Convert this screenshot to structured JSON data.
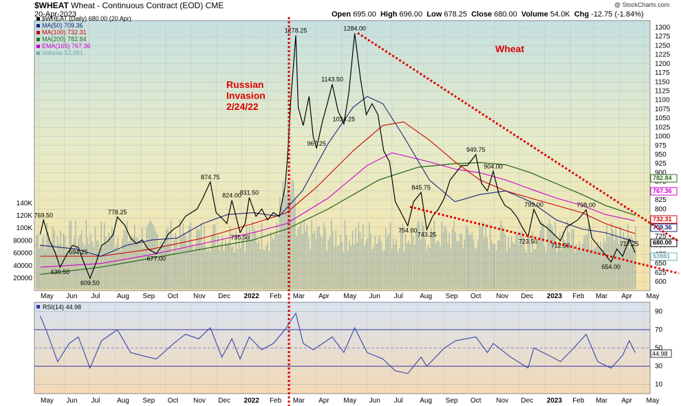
{
  "header": {
    "symbol": "$WHEAT",
    "title": "Wheat - Continuous Contract (EOD)",
    "exchange": "CME",
    "date": "20-Apr-2023",
    "watermark": "@ StockCharts.com",
    "quote": {
      "open_label": "Open",
      "open": "695.00",
      "high_label": "High",
      "high": "696.00",
      "low_label": "Low",
      "low": "678.25",
      "close_label": "Close",
      "close": "680.00",
      "volume_label": "Volume",
      "volume": "54.0K",
      "chg_label": "Chg",
      "chg": "-12.75 (-1.84%)"
    }
  },
  "legend": [
    {
      "text": "$WHEAT (Daily) 680.00 (20 Apr)",
      "color": "#000000"
    },
    {
      "text": "MA(50) 709.36",
      "color": "#1a237e"
    },
    {
      "text": "MA(100) 732.31",
      "color": "#cc0000"
    },
    {
      "text": "MA(200) 782.84",
      "color": "#2e6b1e"
    },
    {
      "text": "EMA(165) 767.36",
      "color": "#cc00cc"
    },
    {
      "text": "Volume 53,981",
      "color": "#6fa8b8"
    }
  ],
  "annotations": {
    "invasion_line1": "Russian",
    "invasion_line2": "Invasion",
    "invasion_line3": "2/24/22",
    "wheat": "Wheat"
  },
  "rsi_panel": {
    "label": "RSI(14) 44.98"
  },
  "chart_data": [
    {
      "type": "line",
      "title": "$WHEAT (Daily)",
      "y_ticks": [
        600,
        625,
        650,
        675,
        700,
        725,
        750,
        775,
        800,
        825,
        850,
        875,
        900,
        925,
        950,
        975,
        1000,
        1025,
        1050,
        1075,
        1100,
        1125,
        1150,
        1175,
        1200,
        1225,
        1250,
        1275,
        1300
      ],
      "volume_ticks": [
        "20000",
        "40000",
        "60000",
        "80000",
        "100K",
        "120K",
        "140K"
      ],
      "x_labels": [
        "May",
        "Jun",
        "Jul",
        "Aug",
        "Sep",
        "Oct",
        "Nov",
        "Dec",
        "2022",
        "Feb",
        "Mar",
        "Apr",
        "May",
        "Jun",
        "Jul",
        "Aug",
        "Sep",
        "Oct",
        "Nov",
        "Dec",
        "2023",
        "Feb",
        "Mar",
        "Apr",
        "May"
      ],
      "price_labels": [
        {
          "text": "769.50",
          "x": "2021-05-07",
          "y": 769.5
        },
        {
          "text": "639.50",
          "x": "2021-05-27",
          "y": 639.5
        },
        {
          "text": "694.25",
          "x": "2021-06-18",
          "y": 694.25
        },
        {
          "text": "609.50",
          "x": "2021-07-02",
          "y": 609.5
        },
        {
          "text": "778.25",
          "x": "2021-08-04",
          "y": 778.25
        },
        {
          "text": "677.00",
          "x": "2021-09-20",
          "y": 677.0
        },
        {
          "text": "874.75",
          "x": "2021-11-24",
          "y": 874.75
        },
        {
          "text": "824.00",
          "x": "2021-12-20",
          "y": 824.0
        },
        {
          "text": "831.50",
          "x": "2022-01-10",
          "y": 831.5
        },
        {
          "text": "735.50",
          "x": "2021-12-30",
          "y": 735.5
        },
        {
          "text": "1278.25",
          "x": "2022-03-07",
          "y": 1278.25
        },
        {
          "text": "967.25",
          "x": "2022-04-01",
          "y": 967.25
        },
        {
          "text": "1143.50",
          "x": "2022-04-20",
          "y": 1143.5
        },
        {
          "text": "1034.25",
          "x": "2022-05-04",
          "y": 1034.25
        },
        {
          "text": "1284.00",
          "x": "2022-05-17",
          "y": 1284.0
        },
        {
          "text": "845.75",
          "x": "2022-08-05",
          "y": 845.75
        },
        {
          "text": "754.00",
          "x": "2022-07-20",
          "y": 754.0
        },
        {
          "text": "743.25",
          "x": "2022-08-12",
          "y": 743.25
        },
        {
          "text": "949.75",
          "x": "2022-10-10",
          "y": 949.75
        },
        {
          "text": "904.00",
          "x": "2022-10-31",
          "y": 904.0
        },
        {
          "text": "799.00",
          "x": "2022-12-19",
          "y": 799.0
        },
        {
          "text": "723.50",
          "x": "2022-12-12",
          "y": 723.5
        },
        {
          "text": "712.50",
          "x": "2023-01-20",
          "y": 712.5
        },
        {
          "text": "798.00",
          "x": "2023-02-20",
          "y": 798.0
        },
        {
          "text": "654.00",
          "x": "2023-03-22",
          "y": 654.0
        },
        {
          "text": "717.25",
          "x": "2023-04-13",
          "y": 717.25
        }
      ],
      "right_tags": [
        {
          "text": "782.84",
          "y": 782.84,
          "color": "#2e6b1e"
        },
        {
          "text": "767.36",
          "y": 767.36,
          "color": "#cc00cc"
        },
        {
          "text": "732.31",
          "y": 732.31,
          "color": "#cc0000"
        },
        {
          "text": "709.36",
          "y": 709.36,
          "color": "#1a237e"
        },
        {
          "text": "680.00",
          "y": 680.0,
          "color": "#000000"
        },
        {
          "text": "53981",
          "y": 655,
          "color": "#6fa8b8"
        }
      ],
      "price": [
        [
          "2021-05-03",
          730
        ],
        [
          "2021-05-07",
          769.5
        ],
        [
          "2021-05-14",
          715
        ],
        [
          "2021-05-21",
          680
        ],
        [
          "2021-05-27",
          639.5
        ],
        [
          "2021-06-04",
          675
        ],
        [
          "2021-06-11",
          700
        ],
        [
          "2021-06-18",
          694.25
        ],
        [
          "2021-06-25",
          650
        ],
        [
          "2021-07-02",
          609.5
        ],
        [
          "2021-07-09",
          650
        ],
        [
          "2021-07-16",
          700
        ],
        [
          "2021-07-23",
          710
        ],
        [
          "2021-07-30",
          730
        ],
        [
          "2021-08-04",
          778.25
        ],
        [
          "2021-08-13",
          755
        ],
        [
          "2021-08-20",
          720
        ],
        [
          "2021-08-27",
          705
        ],
        [
          "2021-09-03",
          715
        ],
        [
          "2021-09-10",
          690
        ],
        [
          "2021-09-20",
          677
        ],
        [
          "2021-09-27",
          700
        ],
        [
          "2021-10-04",
          730
        ],
        [
          "2021-10-11",
          745
        ],
        [
          "2021-10-18",
          755
        ],
        [
          "2021-10-25",
          780
        ],
        [
          "2021-11-01",
          790
        ],
        [
          "2021-11-08",
          800
        ],
        [
          "2021-11-15",
          830
        ],
        [
          "2021-11-24",
          874.75
        ],
        [
          "2021-12-01",
          790
        ],
        [
          "2021-12-08",
          775
        ],
        [
          "2021-12-14",
          760
        ],
        [
          "2021-12-20",
          824
        ],
        [
          "2021-12-30",
          735.5
        ],
        [
          "2022-01-05",
          760
        ],
        [
          "2022-01-10",
          831.5
        ],
        [
          "2022-01-18",
          780
        ],
        [
          "2022-01-25",
          800
        ],
        [
          "2022-02-01",
          770
        ],
        [
          "2022-02-08",
          790
        ],
        [
          "2022-02-15",
          780
        ],
        [
          "2022-02-22",
          860
        ],
        [
          "2022-02-25",
          940
        ],
        [
          "2022-03-01",
          1100
        ],
        [
          "2022-03-07",
          1278.25
        ],
        [
          "2022-03-10",
          1080
        ],
        [
          "2022-03-16",
          1030
        ],
        [
          "2022-03-23",
          1110
        ],
        [
          "2022-03-28",
          1000
        ],
        [
          "2022-04-01",
          967.25
        ],
        [
          "2022-04-08",
          1040
        ],
        [
          "2022-04-14",
          1090
        ],
        [
          "2022-04-20",
          1143.5
        ],
        [
          "2022-04-27",
          1070
        ],
        [
          "2022-05-04",
          1034.25
        ],
        [
          "2022-05-10",
          1120
        ],
        [
          "2022-05-17",
          1284
        ],
        [
          "2022-05-24",
          1160
        ],
        [
          "2022-05-31",
          1060
        ],
        [
          "2022-06-07",
          1090
        ],
        [
          "2022-06-14",
          1060
        ],
        [
          "2022-06-21",
          960
        ],
        [
          "2022-06-28",
          930
        ],
        [
          "2022-07-05",
          820
        ],
        [
          "2022-07-12",
          790
        ],
        [
          "2022-07-20",
          754
        ],
        [
          "2022-07-27",
          820
        ],
        [
          "2022-08-05",
          845.75
        ],
        [
          "2022-08-12",
          743.25
        ],
        [
          "2022-08-19",
          780
        ],
        [
          "2022-08-26",
          800
        ],
        [
          "2022-09-02",
          830
        ],
        [
          "2022-09-09",
          880
        ],
        [
          "2022-09-16",
          900
        ],
        [
          "2022-09-23",
          920
        ],
        [
          "2022-09-30",
          920
        ],
        [
          "2022-10-10",
          949.75
        ],
        [
          "2022-10-17",
          870
        ],
        [
          "2022-10-24",
          850
        ],
        [
          "2022-10-31",
          904
        ],
        [
          "2022-11-07",
          840
        ],
        [
          "2022-11-14",
          810
        ],
        [
          "2022-11-21",
          800
        ],
        [
          "2022-11-28",
          780
        ],
        [
          "2022-12-05",
          750
        ],
        [
          "2022-12-12",
          723.5
        ],
        [
          "2022-12-19",
          799
        ],
        [
          "2022-12-27",
          760
        ],
        [
          "2023-01-03",
          750
        ],
        [
          "2023-01-10",
          735
        ],
        [
          "2023-01-20",
          712.5
        ],
        [
          "2023-01-27",
          750
        ],
        [
          "2023-02-03",
          760
        ],
        [
          "2023-02-10",
          770
        ],
        [
          "2023-02-20",
          798
        ],
        [
          "2023-02-27",
          720
        ],
        [
          "2023-03-06",
          700
        ],
        [
          "2023-03-13",
          680
        ],
        [
          "2023-03-22",
          654
        ],
        [
          "2023-03-29",
          690
        ],
        [
          "2023-04-05",
          670
        ],
        [
          "2023-04-13",
          717.25
        ],
        [
          "2023-04-20",
          680
        ]
      ],
      "ma50": [
        [
          "2021-05-03",
          700
        ],
        [
          "2021-06-15",
          690
        ],
        [
          "2021-07-15",
          670
        ],
        [
          "2021-08-15",
          700
        ],
        [
          "2021-09-15",
          715
        ],
        [
          "2021-10-15",
          720
        ],
        [
          "2021-11-15",
          760
        ],
        [
          "2021-12-15",
          785
        ],
        [
          "2022-01-15",
          790
        ],
        [
          "2022-02-15",
          780
        ],
        [
          "2022-03-15",
          850
        ],
        [
          "2022-04-15",
          980
        ],
        [
          "2022-05-15",
          1080
        ],
        [
          "2022-06-01",
          1110
        ],
        [
          "2022-06-20",
          1090
        ],
        [
          "2022-07-15",
          1000
        ],
        [
          "2022-08-15",
          880
        ],
        [
          "2022-09-15",
          820
        ],
        [
          "2022-10-15",
          840
        ],
        [
          "2022-11-15",
          850
        ],
        [
          "2022-12-15",
          820
        ],
        [
          "2023-01-15",
          770
        ],
        [
          "2023-02-15",
          745
        ],
        [
          "2023-03-15",
          735
        ],
        [
          "2023-04-20",
          709.36
        ]
      ],
      "ma100": [
        [
          "2021-05-03",
          670
        ],
        [
          "2021-07-15",
          670
        ],
        [
          "2021-09-15",
          690
        ],
        [
          "2021-11-15",
          720
        ],
        [
          "2022-01-15",
          760
        ],
        [
          "2022-02-24",
          790
        ],
        [
          "2022-04-01",
          860
        ],
        [
          "2022-05-15",
          960
        ],
        [
          "2022-06-20",
          1030
        ],
        [
          "2022-07-15",
          1040
        ],
        [
          "2022-08-15",
          990
        ],
        [
          "2022-09-15",
          930
        ],
        [
          "2022-10-15",
          880
        ],
        [
          "2022-11-15",
          850
        ],
        [
          "2022-12-15",
          830
        ],
        [
          "2023-01-15",
          810
        ],
        [
          "2023-02-15",
          790
        ],
        [
          "2023-03-15",
          760
        ],
        [
          "2023-04-20",
          732.31
        ]
      ],
      "ma200": [
        [
          "2021-05-03",
          620
        ],
        [
          "2021-07-15",
          640
        ],
        [
          "2021-09-15",
          665
        ],
        [
          "2021-11-15",
          690
        ],
        [
          "2022-01-15",
          715
        ],
        [
          "2022-02-24",
          745
        ],
        [
          "2022-04-15",
          800
        ],
        [
          "2022-06-15",
          880
        ],
        [
          "2022-08-01",
          915
        ],
        [
          "2022-09-15",
          925
        ],
        [
          "2022-10-15",
          928
        ],
        [
          "2022-11-15",
          922
        ],
        [
          "2022-12-15",
          900
        ],
        [
          "2023-01-15",
          870
        ],
        [
          "2023-02-15",
          840
        ],
        [
          "2023-03-15",
          810
        ],
        [
          "2023-04-20",
          782.84
        ]
      ],
      "ema165": [
        [
          "2021-05-03",
          640
        ],
        [
          "2021-07-15",
          650
        ],
        [
          "2021-09-15",
          675
        ],
        [
          "2021-11-15",
          705
        ],
        [
          "2022-01-15",
          735
        ],
        [
          "2022-02-24",
          760
        ],
        [
          "2022-04-15",
          830
        ],
        [
          "2022-06-01",
          920
        ],
        [
          "2022-07-01",
          955
        ],
        [
          "2022-08-15",
          930
        ],
        [
          "2022-09-15",
          910
        ],
        [
          "2022-10-15",
          900
        ],
        [
          "2022-11-15",
          880
        ],
        [
          "2022-12-15",
          855
        ],
        [
          "2023-01-15",
          830
        ],
        [
          "2023-02-15",
          810
        ],
        [
          "2023-03-15",
          785
        ],
        [
          "2023-04-20",
          767.36
        ]
      ]
    },
    {
      "type": "line",
      "title": "RSI(14) 44.98",
      "y_ticks": [
        10,
        30,
        50,
        70,
        90
      ],
      "ylim": [
        0,
        100
      ],
      "last_value": "44.98",
      "rsi": [
        [
          "2021-05-03",
          85
        ],
        [
          "2021-05-10",
          70
        ],
        [
          "2021-05-24",
          35
        ],
        [
          "2021-06-07",
          55
        ],
        [
          "2021-06-18",
          62
        ],
        [
          "2021-07-02",
          28
        ],
        [
          "2021-07-16",
          58
        ],
        [
          "2021-08-04",
          70
        ],
        [
          "2021-08-20",
          45
        ],
        [
          "2021-09-10",
          40
        ],
        [
          "2021-09-20",
          38
        ],
        [
          "2021-10-11",
          55
        ],
        [
          "2021-10-25",
          65
        ],
        [
          "2021-11-10",
          60
        ],
        [
          "2021-11-24",
          72
        ],
        [
          "2021-12-08",
          40
        ],
        [
          "2021-12-20",
          60
        ],
        [
          "2021-12-30",
          38
        ],
        [
          "2022-01-10",
          62
        ],
        [
          "2022-01-25",
          48
        ],
        [
          "2022-02-08",
          55
        ],
        [
          "2022-02-22",
          70
        ],
        [
          "2022-03-07",
          88
        ],
        [
          "2022-03-16",
          55
        ],
        [
          "2022-03-28",
          48
        ],
        [
          "2022-04-20",
          62
        ],
        [
          "2022-05-04",
          45
        ],
        [
          "2022-05-17",
          72
        ],
        [
          "2022-06-01",
          45
        ],
        [
          "2022-06-20",
          38
        ],
        [
          "2022-07-05",
          25
        ],
        [
          "2022-07-20",
          22
        ],
        [
          "2022-08-05",
          40
        ],
        [
          "2022-08-12",
          30
        ],
        [
          "2022-09-02",
          50
        ],
        [
          "2022-09-16",
          58
        ],
        [
          "2022-10-10",
          62
        ],
        [
          "2022-10-24",
          45
        ],
        [
          "2022-10-31",
          55
        ],
        [
          "2022-11-21",
          40
        ],
        [
          "2022-12-12",
          28
        ],
        [
          "2022-12-19",
          50
        ],
        [
          "2023-01-10",
          40
        ],
        [
          "2023-01-20",
          35
        ],
        [
          "2023-02-03",
          48
        ],
        [
          "2023-02-20",
          65
        ],
        [
          "2023-03-06",
          35
        ],
        [
          "2023-03-22",
          28
        ],
        [
          "2023-04-05",
          42
        ],
        [
          "2023-04-13",
          58
        ],
        [
          "2023-04-20",
          44.98
        ]
      ]
    }
  ]
}
